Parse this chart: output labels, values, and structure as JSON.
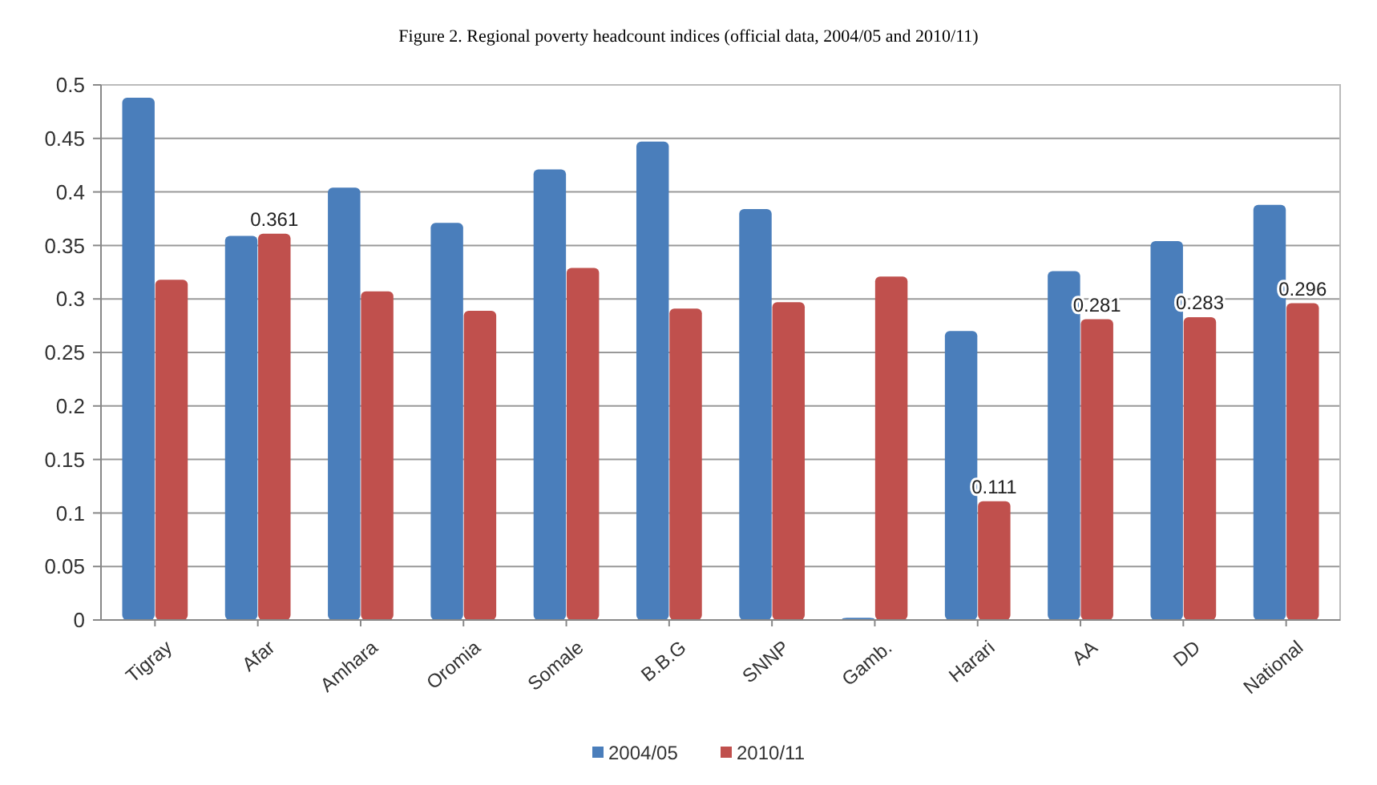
{
  "chart_data": {
    "type": "bar",
    "title": "Figure 2.  Regional poverty headcount indices (official data, 2004/05  and 2010/11)",
    "categories": [
      "Tigray",
      "Afar",
      "Amhara",
      "Oromia",
      "Somale",
      "B.B.G",
      "SNNP",
      "Gamb.",
      "Harari",
      "AA",
      "DD",
      "National"
    ],
    "series": [
      {
        "name": "2004/05",
        "color": "#4a7ebb",
        "values": [
          0.488,
          0.359,
          0.404,
          0.371,
          0.421,
          0.447,
          0.384,
          0.002,
          0.27,
          0.326,
          0.354,
          0.388
        ]
      },
      {
        "name": "2010/11",
        "color": "#c0504d",
        "values": [
          0.318,
          0.361,
          0.307,
          0.289,
          0.329,
          0.291,
          0.297,
          0.321,
          0.111,
          0.281,
          0.283,
          0.296
        ],
        "value_labels": [
          null,
          "0.361",
          null,
          null,
          null,
          null,
          null,
          null,
          "0.111",
          "0.281",
          "0.283",
          "0.296"
        ]
      }
    ],
    "ylim": [
      0,
      0.5
    ],
    "yticks": [
      0,
      0.05,
      0.1,
      0.15,
      0.2,
      0.25,
      0.3,
      0.35,
      0.4,
      0.45,
      0.5
    ],
    "grid": "y",
    "legend": "bottom"
  }
}
